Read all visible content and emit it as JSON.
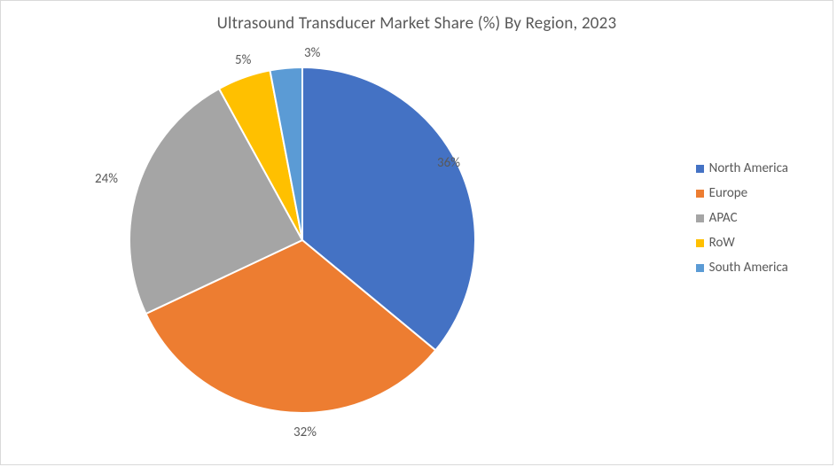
{
  "chart": {
    "type": "pie",
    "title": "Ultrasound Transducer Market Share (%) By Region, 2023",
    "title_fontsize": 19,
    "title_color": "#595959",
    "background_color": "#ffffff",
    "border_color": "#d9d9d9",
    "label_color": "#595959",
    "label_fontsize": 15,
    "legend_fontsize": 15,
    "slice_stroke": "#ffffff",
    "slice_stroke_width": 2,
    "pie_radius": 195,
    "rotation_deg": 0,
    "series": [
      {
        "label": "North America",
        "value": 36,
        "color": "#4472c4",
        "pct_text": "36%"
      },
      {
        "label": "Europe",
        "value": 32,
        "color": "#ed7d31",
        "pct_text": "32%"
      },
      {
        "label": "APAC",
        "value": 24,
        "color": "#a5a5a5",
        "pct_text": "24%"
      },
      {
        "label": "RoW",
        "value": 5,
        "color": "#ffc000",
        "pct_text": "5%"
      },
      {
        "label": "South America",
        "value": 3,
        "color": "#5b9bd5",
        "pct_text": "3%"
      }
    ]
  }
}
